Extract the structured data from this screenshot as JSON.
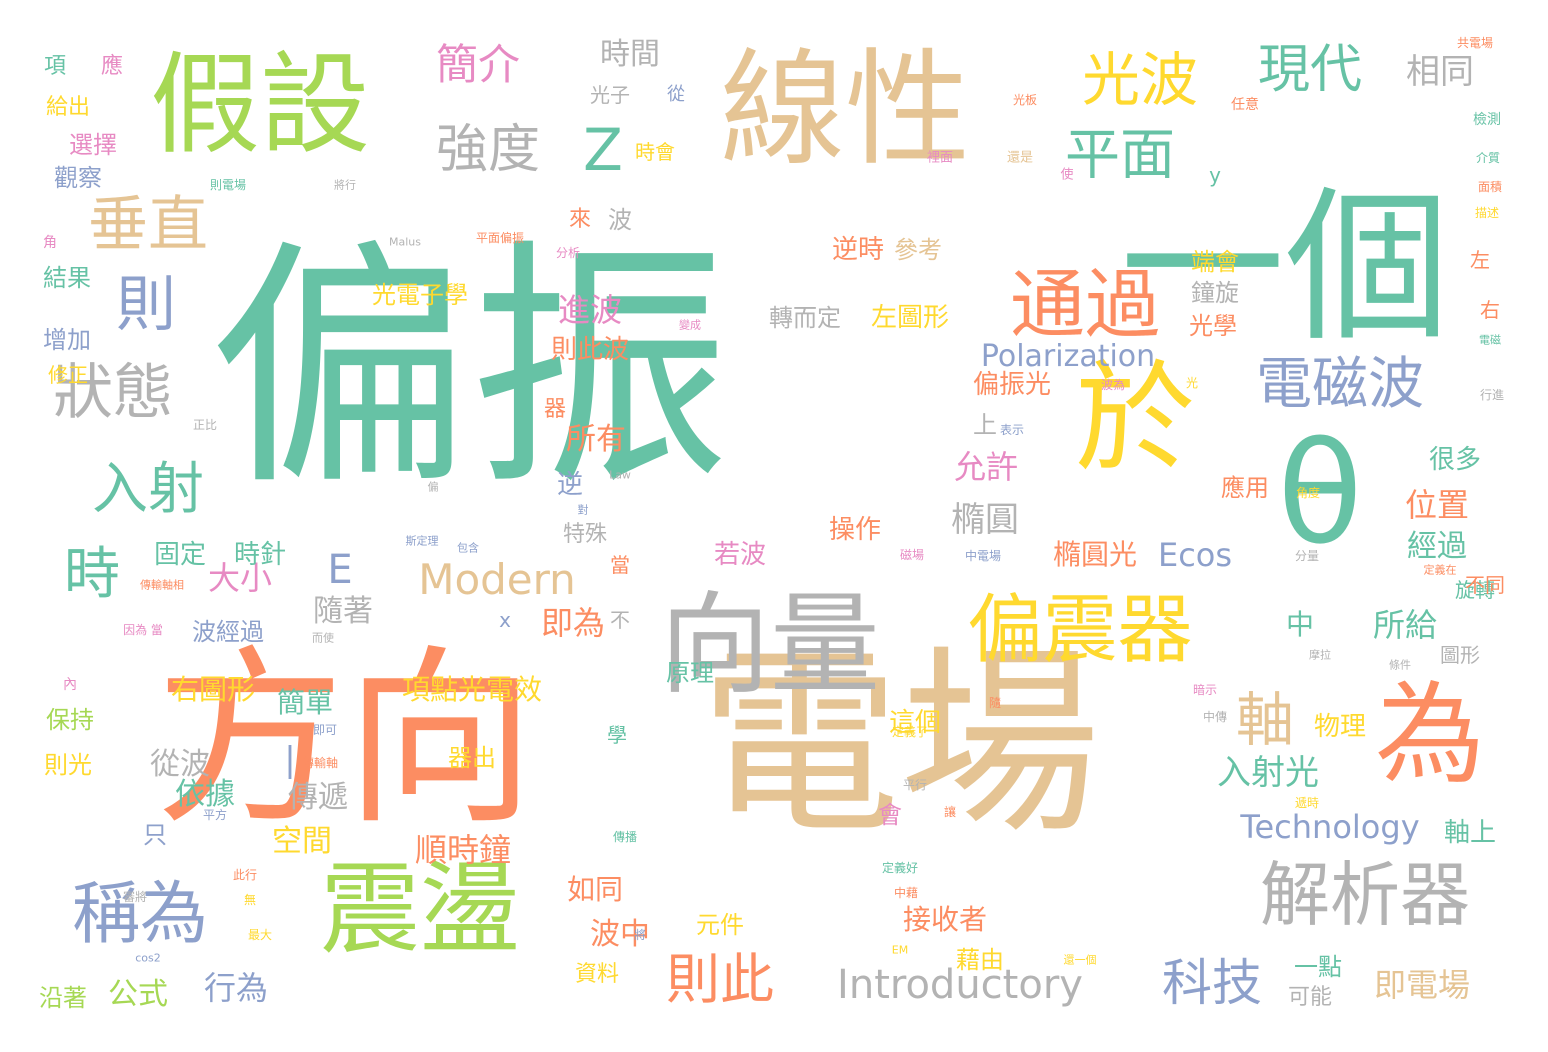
{
  "words": [
    {
      "text": "偏振",
      "color": "c1"
    },
    {
      "text": "電場",
      "color": "c7"
    },
    {
      "text": "方向",
      "color": "c2"
    },
    {
      "text": "一個",
      "color": "c1"
    },
    {
      "text": "線性",
      "color": "c7"
    },
    {
      "text": "假設",
      "color": "c5"
    },
    {
      "text": "向量",
      "color": "c8"
    },
    {
      "text": "震盪",
      "color": "c5"
    },
    {
      "text": "為",
      "color": "c2"
    },
    {
      "text": "θ",
      "color": "c1"
    },
    {
      "text": "於",
      "color": "c6"
    },
    {
      "text": "偏震器",
      "color": "c6"
    },
    {
      "text": "通過",
      "color": "c2"
    },
    {
      "text": "解析器",
      "color": "c8"
    },
    {
      "text": "稱為",
      "color": "c3"
    },
    {
      "text": "電磁波",
      "color": "c3"
    },
    {
      "text": "光波",
      "color": "c6"
    },
    {
      "text": "垂直",
      "color": "c7"
    },
    {
      "text": "平面",
      "color": "c1"
    },
    {
      "text": "現代",
      "color": "c1"
    },
    {
      "text": "強度",
      "color": "c8"
    },
    {
      "text": "Z",
      "color": "c1"
    },
    {
      "text": "狀態",
      "color": "c8"
    },
    {
      "text": "入射",
      "color": "c1"
    },
    {
      "text": "時",
      "color": "c1"
    },
    {
      "text": "則",
      "color": "c3"
    },
    {
      "text": "簡介",
      "color": "c4"
    },
    {
      "text": "則此",
      "color": "c2"
    },
    {
      "text": "Introductory",
      "color": "c8"
    },
    {
      "text": "科技",
      "color": "c3"
    },
    {
      "text": "Modern",
      "color": "c7"
    },
    {
      "text": "軸",
      "color": "c7"
    },
    {
      "text": "E",
      "color": "c3"
    },
    {
      "text": "Technology",
      "color": "c3"
    },
    {
      "text": "Polarization",
      "color": "c3"
    },
    {
      "text": "Ecos",
      "color": "c3"
    },
    {
      "text": "入射光",
      "color": "c1"
    },
    {
      "text": "即電場",
      "color": "c7"
    },
    {
      "text": "經過",
      "color": "c1"
    },
    {
      "text": "位置",
      "color": "c2"
    },
    {
      "text": "所給",
      "color": "c1"
    },
    {
      "text": "相同",
      "color": "c8"
    },
    {
      "text": "時間",
      "color": "c8"
    },
    {
      "text": "橢圓",
      "color": "c8"
    },
    {
      "text": "允許",
      "color": "c4"
    },
    {
      "text": "順時鐘",
      "color": "c2"
    },
    {
      "text": "大小",
      "color": "c4"
    },
    {
      "text": "即為",
      "color": "c2"
    },
    {
      "text": "進波",
      "color": "c4"
    },
    {
      "text": "所有",
      "color": "c2"
    },
    {
      "text": "行為",
      "color": "c3"
    },
    {
      "text": "公式",
      "color": "c5"
    },
    {
      "text": "空間",
      "color": "c6"
    },
    {
      "text": "傳遞",
      "color": "c8"
    },
    {
      "text": "從波",
      "color": "c8"
    },
    {
      "text": "依據",
      "color": "c1"
    },
    {
      "text": "簡單",
      "color": "c1"
    },
    {
      "text": "右圖形",
      "color": "c6"
    },
    {
      "text": "項點光電效",
      "color": "c6"
    },
    {
      "text": "橢圓光",
      "color": "c2"
    },
    {
      "text": "左圖形",
      "color": "c6"
    },
    {
      "text": "轉而定",
      "color": "c8"
    },
    {
      "text": "偏振光",
      "color": "c2"
    },
    {
      "text": "接收者",
      "color": "c2"
    },
    {
      "text": "藉由",
      "color": "c6"
    },
    {
      "text": "波中",
      "color": "c2"
    },
    {
      "text": "如同",
      "color": "c2"
    },
    {
      "text": "光電子學",
      "color": "c6"
    },
    {
      "text": "則此波",
      "color": "c2"
    },
    {
      "text": "操作",
      "color": "c2"
    },
    {
      "text": "若波",
      "color": "c4"
    },
    {
      "text": "波經過",
      "color": "c3"
    },
    {
      "text": "固定",
      "color": "c1"
    },
    {
      "text": "時針",
      "color": "c1"
    },
    {
      "text": "隨著",
      "color": "c8"
    },
    {
      "text": "逆時",
      "color": "c2"
    },
    {
      "text": "參考",
      "color": "c7"
    },
    {
      "text": "很多",
      "color": "c1"
    },
    {
      "text": "應用",
      "color": "c2"
    },
    {
      "text": "端會",
      "color": "c6"
    },
    {
      "text": "鐘旋",
      "color": "c8"
    },
    {
      "text": "光學",
      "color": "c2"
    },
    {
      "text": "物理",
      "color": "c6"
    },
    {
      "text": "軸上",
      "color": "c1"
    },
    {
      "text": "這個",
      "color": "c6"
    },
    {
      "text": "原理",
      "color": "c1"
    },
    {
      "text": "元件",
      "color": "c6"
    },
    {
      "text": "資料",
      "color": "c6"
    },
    {
      "text": "一點",
      "color": "c1"
    },
    {
      "text": "可能",
      "color": "c8"
    },
    {
      "text": "增加",
      "color": "c3"
    },
    {
      "text": "結果",
      "color": "c1"
    },
    {
      "text": "選擇",
      "color": "c4"
    },
    {
      "text": "觀察",
      "color": "c3"
    },
    {
      "text": "給出",
      "color": "c6"
    },
    {
      "text": "保持",
      "color": "c5"
    },
    {
      "text": "則光",
      "color": "c6"
    },
    {
      "text": "沿著",
      "color": "c5"
    },
    {
      "text": "修正",
      "color": "c6"
    },
    {
      "text": "光子",
      "color": "c8"
    },
    {
      "text": "時會",
      "color": "c6"
    },
    {
      "text": "旋轉",
      "color": "c1"
    },
    {
      "text": "不同",
      "color": "c2"
    },
    {
      "text": "圖形",
      "color": "c8"
    },
    {
      "text": "左",
      "color": "c2"
    },
    {
      "text": "右",
      "color": "c2"
    },
    {
      "text": "y",
      "color": "c1"
    },
    {
      "text": "特殊",
      "color": "c8"
    },
    {
      "text": "波",
      "color": "c8"
    },
    {
      "text": "來",
      "color": "c2"
    },
    {
      "text": "中",
      "color": "c1"
    },
    {
      "text": "當",
      "color": "c2"
    },
    {
      "text": "不",
      "color": "c8"
    },
    {
      "text": "x",
      "color": "c3"
    },
    {
      "text": "逆",
      "color": "c3"
    },
    {
      "text": "上",
      "color": "c8"
    },
    {
      "text": "會",
      "color": "c4"
    },
    {
      "text": "只",
      "color": "c3"
    },
    {
      "text": "|",
      "color": "c3"
    },
    {
      "text": "應",
      "color": "c4"
    },
    {
      "text": "項",
      "color": "c1"
    },
    {
      "text": "從",
      "color": "c3"
    },
    {
      "text": "學",
      "color": "c1"
    },
    {
      "text": "器",
      "color": "c2"
    },
    {
      "text": "器出",
      "color": "c6"
    }
  ],
  "small_words": [
    {
      "text": "共電場",
      "color": "c2"
    },
    {
      "text": "光板",
      "color": "c2"
    },
    {
      "text": "任意",
      "color": "c2"
    },
    {
      "text": "檢測",
      "color": "c1"
    },
    {
      "text": "介質",
      "color": "c1"
    },
    {
      "text": "裡面",
      "color": "c4"
    },
    {
      "text": "還是",
      "color": "c7"
    },
    {
      "text": "使",
      "color": "c4"
    },
    {
      "text": "則電場",
      "color": "c1"
    },
    {
      "text": "將行",
      "color": "c8"
    },
    {
      "text": "面積",
      "color": "c2"
    },
    {
      "text": "描述",
      "color": "c6"
    },
    {
      "text": "Malus",
      "color": "c8"
    },
    {
      "text": "平面偏振",
      "color": "c2"
    },
    {
      "text": "分析",
      "color": "c4"
    },
    {
      "text": "角",
      "color": "c4"
    },
    {
      "text": "變成",
      "color": "c4"
    },
    {
      "text": "電磁",
      "color": "c1"
    },
    {
      "text": "波為",
      "color": "c4"
    },
    {
      "text": "光",
      "color": "c6"
    },
    {
      "text": "行進",
      "color": "c8"
    },
    {
      "text": "正比",
      "color": "c8"
    },
    {
      "text": "表示",
      "color": "c3"
    },
    {
      "text": "Law",
      "color": "c8"
    },
    {
      "text": "偏",
      "color": "c8"
    },
    {
      "text": "角度",
      "color": "c6"
    },
    {
      "text": "對",
      "color": "c3"
    },
    {
      "text": "斯定理",
      "color": "c3"
    },
    {
      "text": "包含",
      "color": "c3"
    },
    {
      "text": "磁場",
      "color": "c4"
    },
    {
      "text": "中電場",
      "color": "c3"
    },
    {
      "text": "分量",
      "color": "c8"
    },
    {
      "text": "定義在",
      "color": "c2"
    },
    {
      "text": "傳輸軸相",
      "color": "c2"
    },
    {
      "text": "因為 當",
      "color": "c4"
    },
    {
      "text": "而使",
      "color": "c8"
    },
    {
      "text": "條件",
      "color": "c8"
    },
    {
      "text": "摩拉",
      "color": "c8"
    },
    {
      "text": "內",
      "color": "c4"
    },
    {
      "text": "暗示",
      "color": "c4"
    },
    {
      "text": "隨",
      "color": "c2"
    },
    {
      "text": "中傳",
      "color": "c8"
    },
    {
      "text": "即可",
      "color": "c3"
    },
    {
      "text": "定義了",
      "color": "c6"
    },
    {
      "text": "傳輸軸",
      "color": "c2"
    },
    {
      "text": "平行",
      "color": "c8"
    },
    {
      "text": "讓",
      "color": "c2"
    },
    {
      "text": "遞時",
      "color": "c6"
    },
    {
      "text": "平方",
      "color": "c3"
    },
    {
      "text": "傳播",
      "color": "c1"
    },
    {
      "text": "定義好",
      "color": "c1"
    },
    {
      "text": "此行",
      "color": "c2"
    },
    {
      "text": "審將",
      "color": "c8"
    },
    {
      "text": "無",
      "color": "c6"
    },
    {
      "text": "中藉",
      "color": "c2"
    },
    {
      "text": "將",
      "color": "c3"
    },
    {
      "text": "最大",
      "color": "c6"
    },
    {
      "text": "EM",
      "color": "c6"
    },
    {
      "text": "cos2",
      "color": "c3"
    },
    {
      "text": "還一個",
      "color": "c6"
    }
  ]
}
